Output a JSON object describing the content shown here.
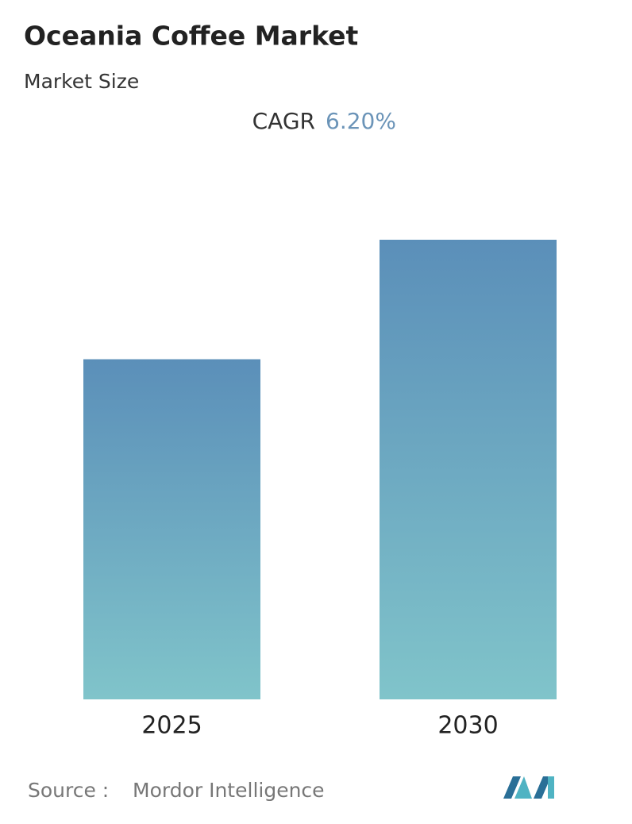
{
  "chart_data": {
    "type": "bar",
    "title": "Oceania Coffee Market",
    "subtitle": "Market Size",
    "cagr_label": "CAGR",
    "cagr_value": "6.20%",
    "categories": [
      "2025",
      "2030"
    ],
    "values": [
      74,
      100
    ],
    "ylim": [
      0,
      100
    ],
    "gradient": [
      "#5b8fb9",
      "#80c4ca"
    ],
    "source_label": "Source :",
    "source": "Mordor Intelligence"
  }
}
